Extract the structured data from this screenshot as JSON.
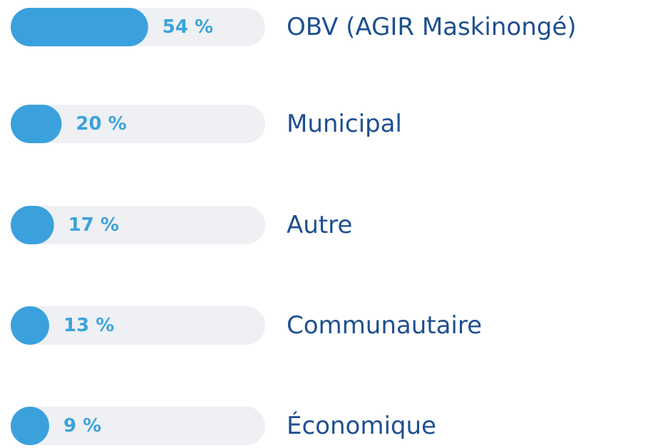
{
  "chart_data": {
    "type": "bar",
    "orientation": "horizontal",
    "categories": [
      "OBV (AGIR Maskinongé)",
      "Municipal",
      "Autre",
      "Communautaire",
      "Économique"
    ],
    "values": [
      54,
      20,
      17,
      13,
      9
    ],
    "value_labels": [
      "54 %",
      "20 %",
      "17 %",
      "13 %",
      "9 %"
    ],
    "xlim": [
      0,
      100
    ],
    "color": "#3aa1dd",
    "track_color": "#eef0f3"
  }
}
